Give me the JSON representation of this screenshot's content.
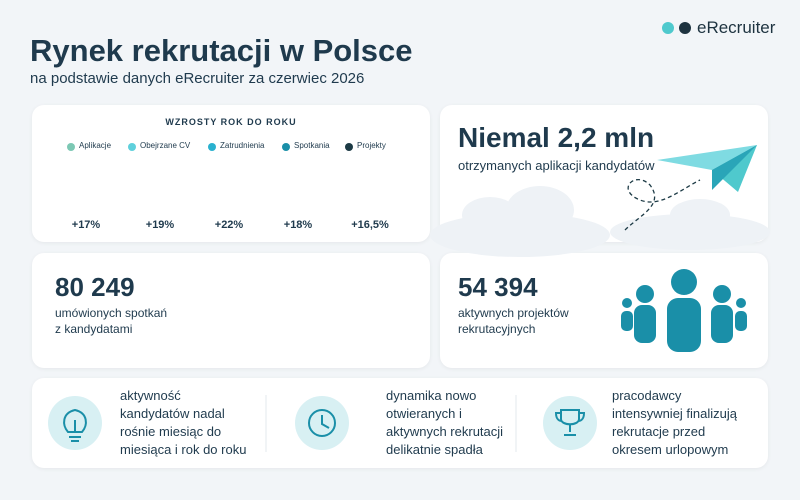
{
  "logo": "eRecruiter",
  "header": {
    "title": "Rynek rekrutacji w Polsce",
    "subtitle": "na podstawie danych eRecruiter za czerwiec 2026"
  },
  "yoy": {
    "title": "WZROSTY ROK DO ROKU",
    "items": [
      {
        "name": "Aplikacje",
        "color": "#7cc8b4",
        "change": "+17%"
      },
      {
        "name": "Obejrzane CV",
        "color": "#5fd0dc",
        "change": "+19%"
      },
      {
        "name": "Zatrudnienia",
        "color": "#2ab1cf",
        "change": "+22%"
      },
      {
        "name": "Spotkania",
        "color": "#1a8fa8",
        "change": "+18%"
      },
      {
        "name": "Projekty",
        "color": "#1c3a45",
        "change": "+16,5%"
      }
    ]
  },
  "cards": [
    {
      "value": "Niemal 2,2 mln",
      "caption": [
        "otrzymanych aplikacji kandydatów"
      ]
    },
    {
      "value": "80 249",
      "caption": [
        "umówionych spotkań",
        "z kandydatami"
      ]
    },
    {
      "value": "54 394",
      "caption": [
        "aktywnych projektów",
        "rekrutacyjnych"
      ]
    }
  ],
  "notes": [
    [
      "aktywność",
      "kandydatów nadal",
      "rośnie miesiąc do",
      "miesiąca i rok do roku"
    ],
    [
      "dynamika nowo",
      "otwieranych i",
      "aktywnych rekrutacji",
      "delikatnie spadła"
    ],
    [
      "pracodawcy",
      "intensywniej finalizują",
      "rekrutacje przed",
      "okresem urlopowym"
    ]
  ]
}
